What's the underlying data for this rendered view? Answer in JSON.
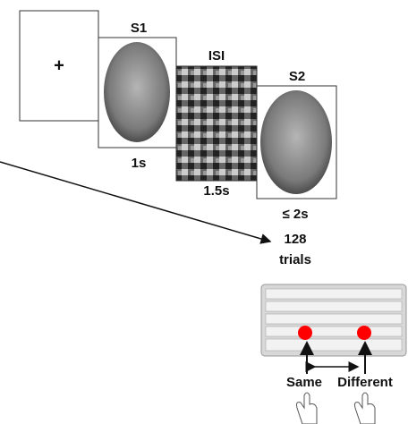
{
  "fixation": {
    "symbol": "+"
  },
  "stimuli": [
    {
      "label": "S1",
      "duration": "1s"
    },
    {
      "label": "ISI",
      "duration": "1.5s"
    },
    {
      "label": "S2",
      "duration": "≤ 2s"
    }
  ],
  "trials": {
    "count": "128",
    "unit": "trials"
  },
  "responses": {
    "same": "Same",
    "different": "Different"
  }
}
